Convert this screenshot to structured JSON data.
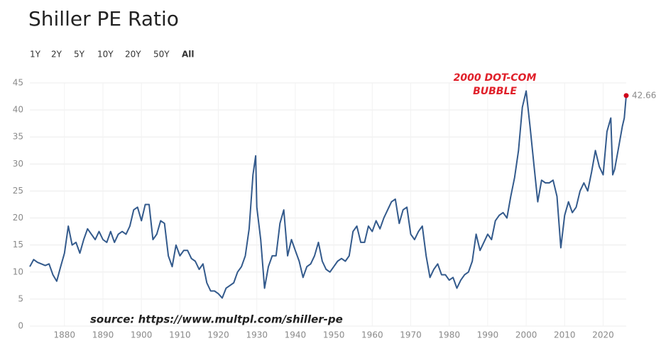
{
  "chart_data": {
    "type": "line",
    "title": "Shiller PE Ratio",
    "range_buttons": [
      "1Y",
      "2Y",
      "5Y",
      "10Y",
      "20Y",
      "50Y",
      "All"
    ],
    "active_button": "All",
    "annotation": [
      "2000 DOT-COM",
      "BUBBLE"
    ],
    "annotation_color": "#e0202a",
    "source": "source: https://www.multpl.com/shiller-pe",
    "x": [
      1871,
      1872,
      1873,
      1874,
      1875,
      1876,
      1877,
      1878,
      1879,
      1880,
      1881,
      1882,
      1883,
      1884,
      1885,
      1886,
      1887,
      1888,
      1889,
      1890,
      1891,
      1892,
      1893,
      1894,
      1895,
      1896,
      1897,
      1898,
      1899,
      1900,
      1901,
      1902,
      1903,
      1904,
      1905,
      1906,
      1907,
      1908,
      1909,
      1910,
      1911,
      1912,
      1913,
      1914,
      1915,
      1916,
      1917,
      1918,
      1919,
      1920,
      1921,
      1922,
      1923,
      1924,
      1925,
      1926,
      1927,
      1928,
      1929,
      1929.7,
      1930,
      1931,
      1932,
      1933,
      1934,
      1935,
      1936,
      1937,
      1938,
      1939,
      1940,
      1941,
      1942,
      1943,
      1944,
      1945,
      1946,
      1947,
      1948,
      1949,
      1950,
      1951,
      1952,
      1953,
      1954,
      1955,
      1956,
      1957,
      1958,
      1959,
      1960,
      1961,
      1962,
      1963,
      1964,
      1965,
      1966,
      1967,
      1968,
      1969,
      1970,
      1971,
      1972,
      1973,
      1974,
      1975,
      1976,
      1977,
      1978,
      1979,
      1980,
      1981,
      1982,
      1983,
      1984,
      1985,
      1986,
      1987,
      1988,
      1989,
      1990,
      1991,
      1992,
      1993,
      1994,
      1995,
      1996,
      1997,
      1998,
      1999,
      2000,
      2001,
      2002,
      2003,
      2004,
      2005,
      2006,
      2007,
      2008,
      2009,
      2010,
      2011,
      2012,
      2013,
      2014,
      2015,
      2016,
      2017,
      2018,
      2019,
      2020,
      2021,
      2022,
      2022.5,
      2023,
      2024,
      2025,
      2025.5,
      2026
    ],
    "series": [
      {
        "color": "#335a8c",
        "values": [
          11,
          12.3,
          11.8,
          11.5,
          11.2,
          11.5,
          9.5,
          8.3,
          11,
          13.5,
          18.5,
          15,
          15.5,
          13.5,
          16,
          18,
          17,
          16,
          17.5,
          16,
          15.5,
          17.5,
          15.5,
          17,
          17.5,
          17,
          18.5,
          21.5,
          22,
          19.5,
          22.5,
          22.5,
          16,
          17,
          19.5,
          19,
          13,
          11,
          15,
          13,
          14,
          14,
          12.5,
          12,
          10.5,
          11.5,
          8,
          6.5,
          6.5,
          6,
          5.2,
          7,
          7.5,
          8,
          10,
          11,
          13,
          18,
          28,
          31.5,
          22,
          16,
          7,
          11,
          13,
          13,
          19,
          21.5,
          13,
          16,
          14,
          12,
          9,
          11,
          11.5,
          13,
          15.5,
          12,
          10.5,
          10,
          11,
          12,
          12.5,
          12,
          13,
          17.5,
          18.5,
          15.5,
          15.5,
          18.5,
          17.5,
          19.5,
          18,
          20,
          21.5,
          23,
          23.5,
          19,
          21.5,
          22,
          17,
          16,
          17.5,
          18.5,
          13,
          9,
          10.5,
          11.5,
          9.5,
          9.5,
          8.5,
          9,
          7,
          8.5,
          9.5,
          10,
          12,
          17,
          14,
          15.5,
          17,
          16,
          19.5,
          20.5,
          21,
          20,
          24,
          27.5,
          32.5,
          40.5,
          43.5,
          37,
          30,
          23,
          27,
          26.5,
          26.5,
          27,
          24,
          14.5,
          20.5,
          23,
          21,
          22,
          25,
          26.5,
          25,
          28.5,
          32.5,
          29.5,
          28,
          36,
          38.5,
          28,
          29,
          33,
          37,
          38.5,
          42.66
        ]
      }
    ],
    "end_marker_color": "#d0021b",
    "xlim": [
      1871,
      2026
    ],
    "ylim": [
      0,
      45
    ],
    "xticks": [
      1880,
      1890,
      1900,
      1910,
      1920,
      1930,
      1940,
      1950,
      1960,
      1970,
      1980,
      1990,
      2000,
      2010,
      2020
    ],
    "yticks": [
      0,
      5,
      10,
      15,
      20,
      25,
      30,
      35,
      40,
      45
    ],
    "grid": true
  }
}
